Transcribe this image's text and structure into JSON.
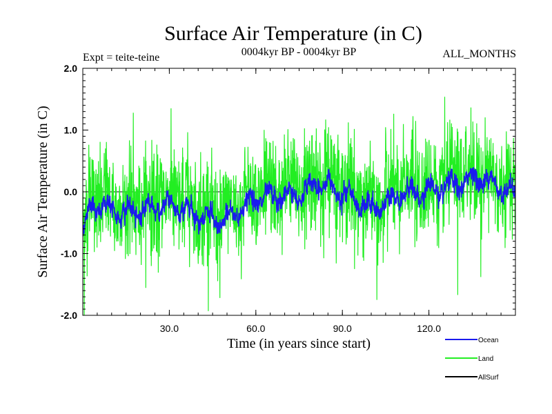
{
  "chart_data": {
    "type": "line",
    "title": "Surface Air Temperature (in C)",
    "subtitle_left": "Expt = teite-teine",
    "subtitle_center": "0004kyr BP - 0004kyr BP",
    "subtitle_right": "ALL_MONTHS",
    "xlabel": "Time (in years since start)",
    "ylabel": "Surface Air Temperature (in C)",
    "xlim": [
      0,
      150
    ],
    "ylim": [
      -2.0,
      2.0
    ],
    "x_ticks": [
      30,
      60,
      90,
      120
    ],
    "x_tick_labels": [
      "30.0",
      "60.0",
      "90.0",
      "120.0"
    ],
    "y_ticks": [
      -2.0,
      -1.0,
      0.0,
      1.0,
      2.0
    ],
    "y_tick_labels": [
      "-2.0",
      "-1.0",
      "0.0",
      "1.0",
      "2.0"
    ],
    "reference_line": 0.0,
    "series": [
      {
        "name": "Land",
        "color": "#22ee22",
        "description": "monthly anomalies, high variance",
        "approx_range": [
          -2.0,
          1.55
        ],
        "notable_points": [
          {
            "x": 0.5,
            "y": -2.0
          },
          {
            "x": 17.5,
            "y": 1.28
          },
          {
            "x": 47.5,
            "y": -1.72
          },
          {
            "x": 102,
            "y": -1.75
          },
          {
            "x": 125.5,
            "y": 1.54
          },
          {
            "x": 130,
            "y": -1.67
          },
          {
            "x": 138,
            "y": -1.38
          }
        ]
      },
      {
        "name": "Ocean",
        "color": "#1a1aee",
        "description": "monthly anomalies, low variance",
        "approx_range": [
          -0.8,
          0.35
        ],
        "trend_points": [
          {
            "x": 0,
            "y": -0.7
          },
          {
            "x": 3,
            "y": -0.2
          },
          {
            "x": 15,
            "y": -0.35
          },
          {
            "x": 30,
            "y": -0.2
          },
          {
            "x": 48,
            "y": -0.5
          },
          {
            "x": 60,
            "y": -0.1
          },
          {
            "x": 75,
            "y": -0.05
          },
          {
            "x": 82,
            "y": 0.15
          },
          {
            "x": 90,
            "y": 0.0
          },
          {
            "x": 100,
            "y": -0.3
          },
          {
            "x": 110,
            "y": -0.05
          },
          {
            "x": 125,
            "y": 0.05
          },
          {
            "x": 137,
            "y": 0.25
          },
          {
            "x": 150,
            "y": -0.05
          }
        ]
      },
      {
        "name": "AllSurf",
        "color": "#000000",
        "description": "drawn beneath other series (not distinctly visible)"
      }
    ],
    "legend": {
      "placement": "bottom-right",
      "entries": [
        {
          "label": "Ocean",
          "color": "#1a1aee"
        },
        {
          "label": "Land",
          "color": "#22ee22"
        },
        {
          "label": "AllSurf",
          "color": "#000000"
        }
      ]
    }
  }
}
